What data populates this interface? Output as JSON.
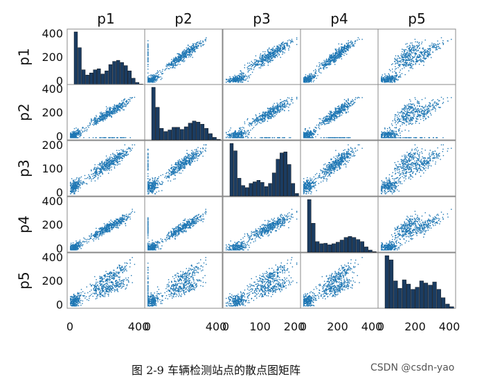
{
  "chart_data": {
    "type": "scatter",
    "subtype": "scatter-matrix",
    "variables": [
      "p1",
      "p2",
      "p3",
      "p4",
      "p5"
    ],
    "column_titles": [
      "p1",
      "p2",
      "p3",
      "p4",
      "p5"
    ],
    "row_labels": [
      "p1",
      "p2",
      "p3",
      "p4",
      "p5"
    ],
    "row_tick_labels": [
      [
        "0",
        "200",
        "400"
      ],
      [
        "0",
        "200",
        "400"
      ],
      [
        "0",
        "100",
        "200"
      ],
      [
        "0",
        "200",
        "400"
      ],
      [
        "0",
        "200",
        "400"
      ]
    ],
    "column_tick_labels": [
      [
        "0",
        "400"
      ],
      [
        "0",
        "400"
      ],
      [
        "0",
        "100",
        "200"
      ],
      [
        "0",
        "200",
        "400"
      ],
      [
        "0",
        "200",
        "400"
      ]
    ],
    "ranges": [
      [
        0,
        420
      ],
      [
        0,
        420
      ],
      [
        0,
        210
      ],
      [
        0,
        420
      ],
      [
        0,
        420
      ]
    ],
    "tick_values": [
      [
        0,
        200,
        400
      ],
      [
        0,
        200,
        400
      ],
      [
        0,
        100,
        200
      ],
      [
        0,
        200,
        400
      ],
      [
        0,
        200,
        400
      ]
    ],
    "x_tick_values": [
      [
        0,
        400
      ],
      [
        0,
        400
      ],
      [
        0,
        100,
        200
      ],
      [
        0,
        200,
        400
      ],
      [
        0,
        200,
        400
      ]
    ],
    "histograms": {
      "p1": [
        100,
        70,
        28,
        18,
        22,
        28,
        30,
        20,
        26,
        38,
        44,
        46,
        42,
        36,
        26,
        12,
        4,
        1
      ],
      "p2": [
        100,
        62,
        22,
        16,
        19,
        24,
        24,
        20,
        25,
        32,
        36,
        34,
        30,
        22,
        12,
        5,
        1
      ],
      "p3": [
        100,
        86,
        34,
        20,
        16,
        24,
        27,
        30,
        26,
        18,
        24,
        44,
        70,
        82,
        84,
        60,
        24,
        5
      ],
      "p4": [
        100,
        55,
        20,
        16,
        17,
        14,
        16,
        19,
        23,
        28,
        30,
        28,
        24,
        20,
        10,
        4,
        1
      ],
      "p5": [
        100,
        92,
        52,
        38,
        54,
        46,
        36,
        40,
        52,
        48,
        44,
        50,
        36,
        20,
        8,
        3
      ]
    },
    "scatter_description": "Each off-diagonal panel plots one vehicle-detector variable against another; strong positive linear relationships between p1-p4, fan-shaped two-branch pattern involving p5, and a cluster of zero values in p2.",
    "colors": {
      "points": "#1f77b4",
      "bars": "#1b3c61",
      "bar_edge": "#000000",
      "axes": "#888888"
    }
  },
  "caption": {
    "text": "图 2-9  车辆检测站点的散点图矩阵",
    "watermark": "CSDN @csdn-yao"
  }
}
